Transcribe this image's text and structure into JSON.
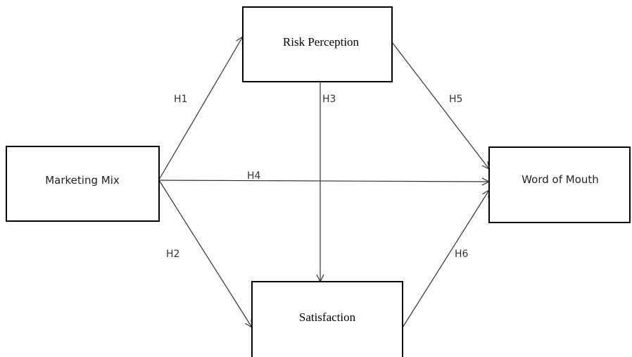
{
  "nodes": [
    {
      "label": "Marketing Mix"
    },
    {
      "label": "Risk Perception"
    },
    {
      "label": "Satisfaction"
    },
    {
      "label": "Word of Mouth"
    }
  ],
  "edges": [
    {
      "label": "H1"
    },
    {
      "label": "H2"
    },
    {
      "label": "H3"
    },
    {
      "label": "H4"
    },
    {
      "label": "H5"
    },
    {
      "label": "H6"
    }
  ]
}
